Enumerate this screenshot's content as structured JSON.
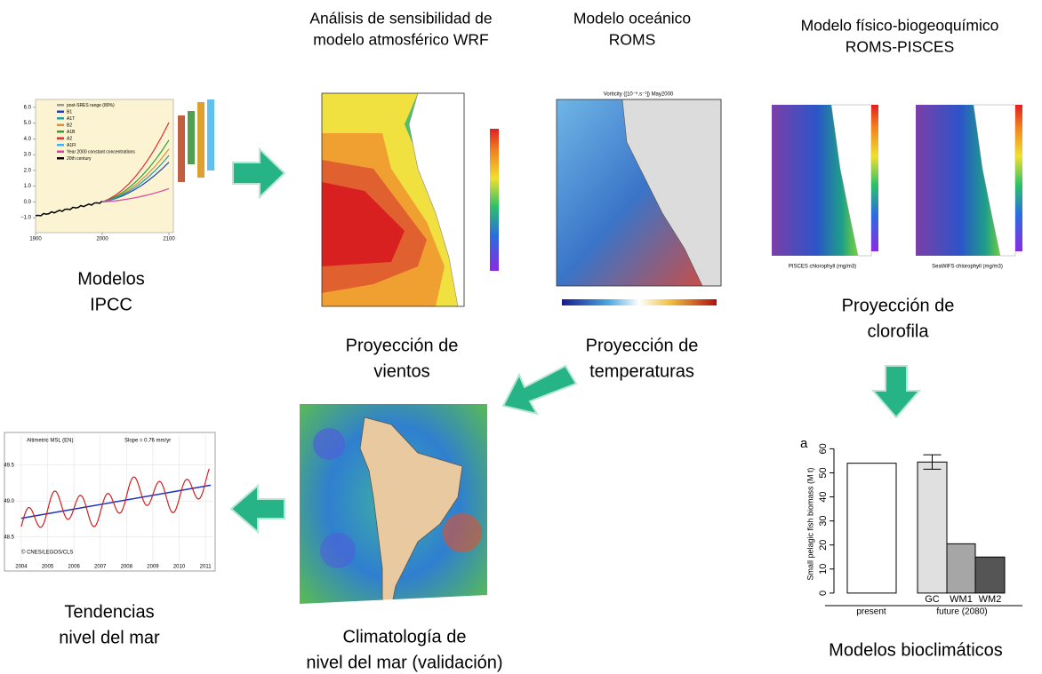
{
  "nodes": [
    {
      "label": [
        "Modelos",
        "IPCC"
      ]
    },
    {
      "heading": [
        "Análisis de sensibilidad de",
        "modelo atmosférico WRF"
      ],
      "label": [
        "Proyección de",
        "vientos"
      ]
    },
    {
      "heading": [
        "Modelo oceánico",
        "ROMS"
      ],
      "label": [
        "Proyección de",
        "temperaturas"
      ]
    },
    {
      "heading": [
        "Modelo físico-biogeoquímico",
        "ROMS-PISCES"
      ],
      "label": [
        "Proyección de",
        "clorofila"
      ]
    },
    {
      "label": [
        "Modelos bioclimáticos"
      ]
    },
    {
      "label": [
        "Climatología  de",
        "nivel del mar (validación)"
      ]
    },
    {
      "label": [
        "Tendencias",
        "nivel del mar"
      ]
    }
  ],
  "ipcc_chart": {
    "xlim": [
      1900,
      2100
    ],
    "xticks": [
      1900,
      2000,
      2100
    ],
    "ylim": [
      -1.5,
      6.5
    ],
    "yticks": [
      {
        "value": -1,
        "label": "−1.0"
      },
      {
        "value": 0,
        "label": "0.0"
      },
      {
        "value": 1,
        "label": "1.0"
      },
      {
        "value": 2,
        "label": "2.0"
      },
      {
        "value": 3,
        "label": "3.0"
      },
      {
        "value": 4,
        "label": "4.0"
      },
      {
        "value": 5,
        "label": "5.0"
      },
      {
        "value": 6,
        "label": "6.0"
      }
    ],
    "legend": [
      "post-SRES range (80%)",
      "B1",
      "A1T",
      "B2",
      "A1B",
      "A2",
      "A1FI",
      "Year 2000 constant concentrations",
      "20th century"
    ]
  },
  "roms_map": {
    "title": "Vorticity ([10⁻⁶.s⁻¹]) May2000"
  },
  "pisces_maps": {
    "captions": [
      "PISCES chlorophyll (mg/m3)",
      "SeaWiFS chlorophyll (mg/m3)"
    ]
  },
  "sea_level_chart": {
    "legend": "Altimetric MSL (EN)",
    "slope": "Slope = 0.76 mm/yr",
    "credit": "© CNES/LEGOS/CLS",
    "xlim": [
      2003.8,
      2011.3
    ],
    "xticks": [
      2004,
      2005,
      2006,
      2007,
      2008,
      2009,
      2010,
      2011
    ],
    "ylim": [
      48.15,
      49.88
    ],
    "yticks": [
      48.5,
      {
        "value": 49,
        "label": "49.0"
      },
      49.5
    ]
  },
  "bar_chart": {
    "type": "bar",
    "panel": "a",
    "ylabel": "Small pelagic fish biomass (M t)",
    "categories": [
      null,
      "GC",
      "WM1",
      "WM2"
    ],
    "values": [
      54,
      54.5,
      20.5,
      15
    ],
    "errors": [
      null,
      3,
      null,
      null
    ],
    "colors": [
      "#ffffff",
      "#e0e0e0",
      "#a6a6a6",
      "#555555"
    ],
    "groups": [
      "present",
      "future (2080)"
    ],
    "ylim": [
      -3,
      62
    ],
    "yticks": [
      0,
      10,
      20,
      30,
      40,
      50,
      60
    ]
  }
}
